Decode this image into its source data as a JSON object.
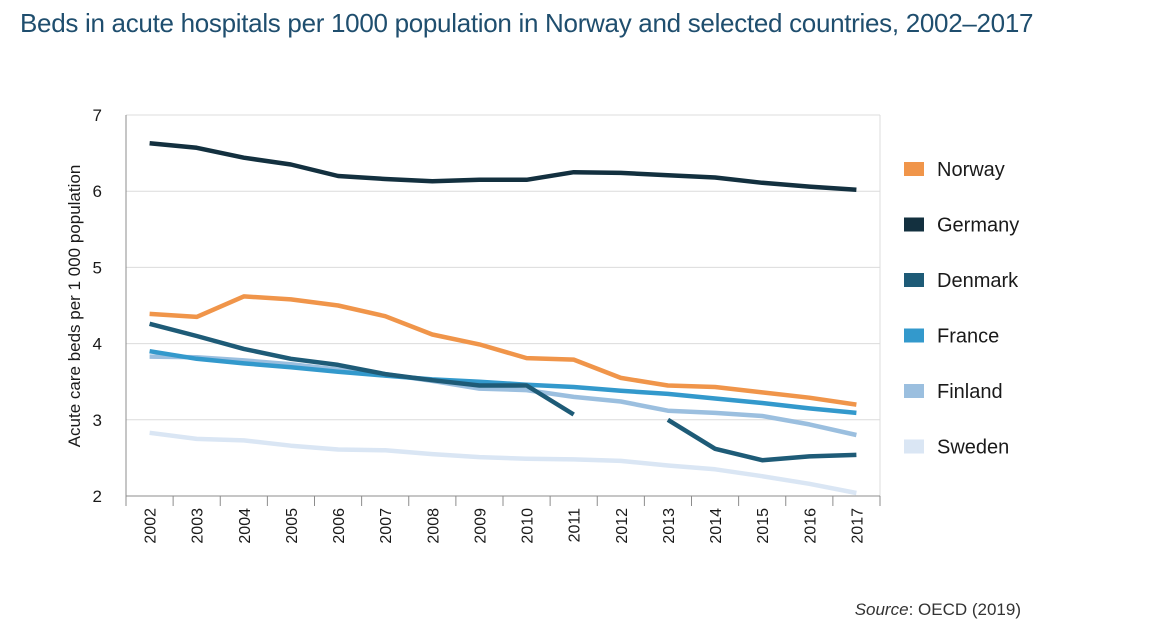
{
  "title": "Beds in acute hospitals per 1000 population in Norway and selected countries, 2002–2017",
  "source_label": "Source",
  "source_text": ": OECD (2019)",
  "chart_data": {
    "type": "line",
    "title": "Beds in acute hospitals per 1000 population in Norway and selected countries, 2002–2017",
    "xlabel": "",
    "ylabel": "Acute care beds per 1 000 population",
    "ylim": [
      2,
      7
    ],
    "yticks": [
      2,
      3,
      4,
      5,
      6,
      7
    ],
    "grid": true,
    "legend_position": "right",
    "x": [
      "2002",
      "2003",
      "2004",
      "2005",
      "2006",
      "2007",
      "2008",
      "2009",
      "2010",
      "2011",
      "2012",
      "2013",
      "2014",
      "2015",
      "2016",
      "2017"
    ],
    "series": [
      {
        "name": "Norway",
        "color": "#f0954a",
        "values": [
          4.39,
          4.35,
          4.62,
          4.58,
          4.5,
          4.36,
          4.12,
          3.99,
          3.81,
          3.79,
          3.55,
          3.45,
          3.43,
          3.36,
          3.29,
          3.2
        ]
      },
      {
        "name": "Germany",
        "color": "#13303f",
        "values": [
          6.63,
          6.57,
          6.44,
          6.35,
          6.2,
          6.16,
          6.13,
          6.15,
          6.15,
          6.25,
          6.24,
          6.21,
          6.18,
          6.11,
          6.06,
          6.02
        ]
      },
      {
        "name": "Denmark",
        "color": "#1e5b77",
        "values": [
          4.26,
          4.1,
          3.93,
          3.8,
          3.72,
          3.6,
          3.52,
          3.45,
          3.45,
          3.07,
          null,
          3.0,
          2.62,
          2.47,
          2.52,
          2.54
        ]
      },
      {
        "name": "France",
        "color": "#3399cc",
        "values": [
          3.9,
          3.8,
          3.74,
          3.69,
          3.63,
          3.58,
          3.53,
          3.5,
          3.46,
          3.43,
          3.38,
          3.34,
          3.28,
          3.22,
          3.15,
          3.09
        ]
      },
      {
        "name": "Finland",
        "color": "#9bbfdf",
        "values": [
          3.83,
          3.82,
          3.78,
          3.73,
          3.66,
          3.6,
          3.51,
          3.41,
          3.39,
          3.3,
          3.24,
          3.12,
          3.09,
          3.05,
          2.94,
          2.8
        ]
      },
      {
        "name": "Sweden",
        "color": "#dae6f4",
        "values": [
          2.83,
          2.75,
          2.73,
          2.66,
          2.61,
          2.6,
          2.55,
          2.51,
          2.49,
          2.48,
          2.46,
          2.4,
          2.35,
          2.26,
          2.16,
          2.04
        ]
      }
    ]
  }
}
